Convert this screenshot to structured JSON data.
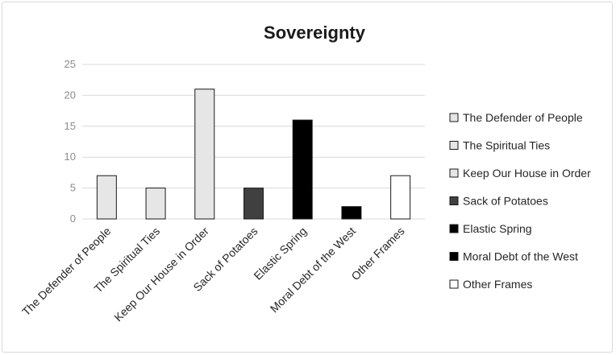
{
  "chart_data": {
    "type": "bar",
    "title": "Sovereignty",
    "categories": [
      "The Defender of People",
      "The Spiritual Ties",
      "Keep Our House in Order",
      "Sack of Potatoes",
      "Elastic Spring",
      "Moral Debt of the West",
      "Other Frames"
    ],
    "values": [
      7,
      5,
      21,
      5,
      16,
      2,
      7
    ],
    "colors": [
      "#e6e6e6",
      "#e6e6e6",
      "#e6e6e6",
      "#404040",
      "#000000",
      "#000000",
      "#ffffff"
    ],
    "ylim": [
      0,
      25
    ],
    "yticks": [
      0,
      5,
      10,
      15,
      20,
      25
    ],
    "grid": true,
    "legend_position": "right",
    "legend": [
      "The Defender of People",
      "The Spiritual Ties",
      "Keep Our House in Order",
      "Sack of Potatoes",
      "Elastic Spring",
      "Moral Debt of the West",
      "Other Frames"
    ]
  }
}
